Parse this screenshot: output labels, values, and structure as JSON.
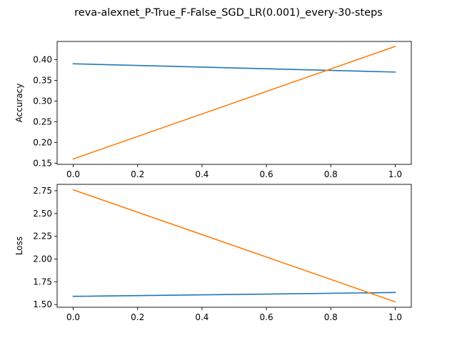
{
  "title": "reva-alexnet_P-True_F-False_SGD_LR(0.001)_every-30-steps",
  "chart_data": [
    {
      "type": "line",
      "ylabel": "Accuracy",
      "xlim": [
        -0.05,
        1.05
      ],
      "ylim": [
        0.147,
        0.444
      ],
      "xticks": [
        0.0,
        0.2,
        0.4,
        0.6,
        0.8,
        1.0
      ],
      "xtick_labels": [
        "0.0",
        "0.2",
        "0.4",
        "0.6",
        "0.8",
        "1.0"
      ],
      "yticks": [
        0.15,
        0.2,
        0.25,
        0.3,
        0.35,
        0.4
      ],
      "ytick_labels": [
        "0.15",
        "0.20",
        "0.25",
        "0.30",
        "0.35",
        "0.40"
      ],
      "grid": false,
      "series": [
        {
          "x": [
            0,
            1
          ],
          "values": [
            0.39,
            0.37
          ],
          "color": "#1f77b4"
        },
        {
          "x": [
            0,
            1
          ],
          "values": [
            0.16,
            0.432
          ],
          "color": "#ff7f0e"
        }
      ]
    },
    {
      "type": "line",
      "ylabel": "Loss",
      "xlim": [
        -0.05,
        1.05
      ],
      "ylim": [
        1.47,
        2.82
      ],
      "xticks": [
        0.0,
        0.2,
        0.4,
        0.6,
        0.8,
        1.0
      ],
      "xtick_labels": [
        "0.0",
        "0.2",
        "0.4",
        "0.6",
        "0.8",
        "1.0"
      ],
      "yticks": [
        1.5,
        1.75,
        2.0,
        2.25,
        2.5,
        2.75
      ],
      "ytick_labels": [
        "1.50",
        "1.75",
        "2.00",
        "2.25",
        "2.50",
        "2.75"
      ],
      "grid": false,
      "series": [
        {
          "x": [
            0,
            1
          ],
          "values": [
            1.59,
            1.632
          ],
          "color": "#1f77b4"
        },
        {
          "x": [
            0,
            1
          ],
          "values": [
            2.76,
            1.53
          ],
          "color": "#ff7f0e"
        }
      ]
    }
  ]
}
